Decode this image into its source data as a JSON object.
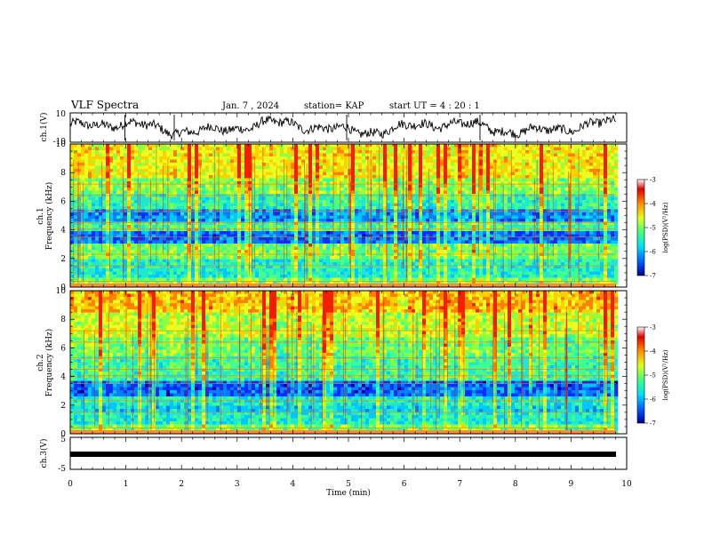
{
  "header": {
    "title": "VLF Spectra",
    "date": "Jan. 7 , 2024",
    "station": "station= KAP",
    "start": "start UT =  4 : 20 : 1"
  },
  "chart_data": [
    {
      "type": "line",
      "panel": "ch1-waveform",
      "ylabel": "ch.1(V)",
      "ylim": [
        -10,
        10
      ],
      "yticks": [
        "10",
        "-10"
      ],
      "xlim": [
        0,
        10
      ],
      "series_color": "#000000"
    },
    {
      "type": "heatmap",
      "panel": "ch1-spectrogram",
      "ylabel_line1": "ch.1",
      "ylabel_line2": "Frequency (kHz)",
      "ylim": [
        0,
        10
      ],
      "yticks": [
        "0",
        "2",
        "4",
        "6",
        "8",
        "10"
      ],
      "xlim": [
        0,
        10
      ],
      "colorbar": {
        "label": "log(PSD)(V²/Hz)",
        "range": [
          -7,
          -3
        ],
        "ticks": [
          "-3",
          "-4",
          "-5",
          "-6",
          "-7"
        ],
        "colors": [
          "#000090",
          "#0060ff",
          "#00e0ff",
          "#40ff80",
          "#e0ff20",
          "#ff9000",
          "#e00000",
          "#ffffff"
        ]
      }
    },
    {
      "type": "heatmap",
      "panel": "ch2-spectrogram",
      "ylabel_line1": "ch.2",
      "ylabel_line2": "Frequency (kHz)",
      "ylim": [
        0,
        10
      ],
      "yticks": [
        "0",
        "2",
        "4",
        "6",
        "8",
        "10"
      ],
      "xlim": [
        0,
        10
      ],
      "colorbar": {
        "label": "log(PSD)(V²/Hz)",
        "range": [
          -7,
          -3
        ],
        "ticks": [
          "-3",
          "-4",
          "-5",
          "-6",
          "-7"
        ]
      }
    },
    {
      "type": "line",
      "panel": "ch3-signal",
      "ylabel": "ch.3(V)",
      "ylim": [
        -5,
        5
      ],
      "yticks": [
        "5",
        "-5"
      ],
      "xlim": [
        0,
        10
      ],
      "xlabel": "Time (min)",
      "xticks": [
        "0",
        "1",
        "2",
        "3",
        "4",
        "5",
        "6",
        "7",
        "8",
        "9",
        "10"
      ]
    }
  ]
}
